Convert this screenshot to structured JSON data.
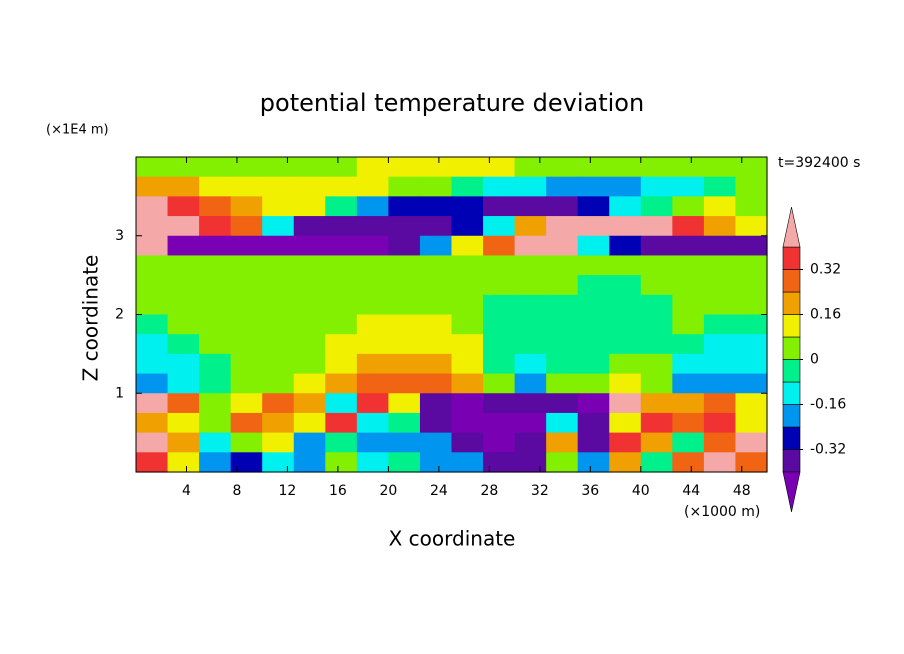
{
  "chart_data": {
    "type": "contour",
    "title": "potential temperature deviation",
    "x_label": "X coordinate",
    "y_label": "Z coordinate",
    "x_unit": "(×1000 m)",
    "y_unit": "(×1E4 m)",
    "annotation": "t=392400 s",
    "xlim": [
      0,
      50
    ],
    "ylim": [
      0,
      4
    ],
    "xticks": [
      4,
      8,
      12,
      16,
      20,
      24,
      28,
      32,
      36,
      40,
      44,
      48
    ],
    "yticks": [
      1,
      2,
      3
    ],
    "levels": [
      -0.4,
      -0.32,
      -0.24,
      -0.16,
      -0.08,
      0,
      0.08,
      0.16,
      0.24,
      0.32,
      0.4
    ],
    "colors": [
      "#7a00b4",
      "#5a0aa0",
      "#0000b4",
      "#0096f0",
      "#00f0f0",
      "#00f08c",
      "#82f000",
      "#f0f000",
      "#f0a000",
      "#f06414",
      "#f03232",
      "#f4a8a8"
    ],
    "colorbar_ticks": [
      -0.32,
      -0.16,
      0,
      0.16,
      0.32
    ],
    "z": [
      [
        0.04,
        0.04,
        0.04,
        0.04,
        0.04,
        0.04,
        0.04,
        0.12,
        0.12,
        0.12,
        0.12,
        0.12,
        0.04,
        0.04,
        0.04,
        0.04,
        0.04,
        0.04,
        0.04,
        0.04
      ],
      [
        0.2,
        0.2,
        0.12,
        0.12,
        0.12,
        0.12,
        0.12,
        0.12,
        0.04,
        0.04,
        -0.04,
        -0.12,
        -0.12,
        -0.2,
        -0.2,
        -0.2,
        -0.12,
        -0.12,
        -0.04,
        0.04
      ],
      [
        0.45,
        0.36,
        0.28,
        0.2,
        0.12,
        0.12,
        -0.04,
        -0.2,
        -0.28,
        -0.28,
        -0.28,
        -0.36,
        -0.36,
        -0.36,
        -0.28,
        -0.12,
        -0.04,
        0.04,
        0.12,
        0.04
      ],
      [
        0.45,
        0.45,
        0.36,
        0.28,
        -0.12,
        -0.36,
        -0.36,
        -0.36,
        -0.36,
        -0.36,
        -0.28,
        -0.12,
        0.2,
        0.45,
        0.45,
        0.45,
        0.45,
        0.36,
        0.2,
        0.12
      ],
      [
        0.45,
        -0.45,
        -0.45,
        -0.45,
        -0.45,
        -0.45,
        -0.45,
        -0.45,
        -0.36,
        -0.2,
        0.12,
        0.28,
        0.45,
        0.45,
        -0.12,
        -0.28,
        -0.36,
        -0.36,
        -0.36,
        -0.36
      ],
      [
        0.04,
        0.04,
        0.04,
        0.04,
        0.04,
        0.04,
        0.04,
        0.04,
        0.04,
        0.04,
        0.04,
        0.04,
        0.04,
        0.04,
        0.04,
        0.04,
        0.04,
        0.04,
        0.04,
        0.04
      ],
      [
        0.04,
        0.04,
        0.04,
        0.04,
        0.04,
        0.04,
        0.04,
        0.04,
        0.04,
        0.04,
        0.04,
        0.04,
        0.04,
        0.04,
        -0.04,
        -0.04,
        0.04,
        0.04,
        0.04,
        0.04
      ],
      [
        0.04,
        0.04,
        0.04,
        0.04,
        0.04,
        0.04,
        0.04,
        0.04,
        0.04,
        0.04,
        0.04,
        -0.04,
        -0.04,
        -0.04,
        -0.04,
        -0.04,
        -0.04,
        0.04,
        0.04,
        0.04
      ],
      [
        -0.04,
        0.04,
        0.04,
        0.04,
        0.04,
        0.04,
        0.04,
        0.12,
        0.12,
        0.12,
        0.04,
        -0.04,
        -0.04,
        -0.04,
        -0.04,
        -0.04,
        -0.04,
        0.04,
        -0.04,
        -0.04
      ],
      [
        -0.12,
        -0.04,
        0.04,
        0.04,
        0.04,
        0.04,
        0.12,
        0.12,
        0.12,
        0.12,
        0.12,
        -0.04,
        -0.04,
        -0.04,
        -0.04,
        -0.04,
        -0.04,
        -0.04,
        -0.12,
        -0.12
      ],
      [
        -0.12,
        -0.12,
        -0.04,
        0.04,
        0.04,
        0.04,
        0.12,
        0.2,
        0.2,
        0.2,
        0.12,
        -0.04,
        -0.12,
        -0.04,
        -0.04,
        0.04,
        0.04,
        -0.12,
        -0.12,
        -0.12
      ],
      [
        -0.2,
        -0.12,
        -0.04,
        0.04,
        0.04,
        0.12,
        0.2,
        0.28,
        0.28,
        0.28,
        0.2,
        0.04,
        -0.2,
        0.04,
        0.04,
        0.12,
        0.04,
        -0.2,
        -0.2,
        -0.2
      ],
      [
        0.45,
        0.28,
        0.04,
        0.12,
        0.28,
        0.2,
        -0.12,
        0.36,
        0.12,
        -0.36,
        -0.45,
        -0.36,
        -0.36,
        -0.36,
        -0.45,
        0.45,
        0.2,
        0.2,
        0.28,
        0.12
      ],
      [
        0.2,
        0.12,
        0.04,
        0.28,
        0.2,
        0.12,
        0.36,
        -0.12,
        -0.04,
        -0.36,
        -0.45,
        -0.45,
        -0.45,
        -0.12,
        -0.36,
        0.12,
        0.36,
        0.28,
        0.36,
        0.12
      ],
      [
        0.45,
        0.2,
        -0.12,
        0.04,
        0.12,
        -0.2,
        -0.04,
        -0.2,
        -0.2,
        -0.2,
        -0.36,
        -0.45,
        -0.36,
        0.2,
        -0.36,
        0.36,
        0.2,
        -0.04,
        0.28,
        0.45
      ],
      [
        0.36,
        0.12,
        -0.2,
        -0.28,
        -0.12,
        -0.2,
        0.04,
        -0.12,
        -0.04,
        -0.2,
        -0.2,
        -0.36,
        -0.36,
        0.04,
        -0.2,
        0.2,
        -0.04,
        0.28,
        0.45,
        0.28
      ]
    ]
  }
}
